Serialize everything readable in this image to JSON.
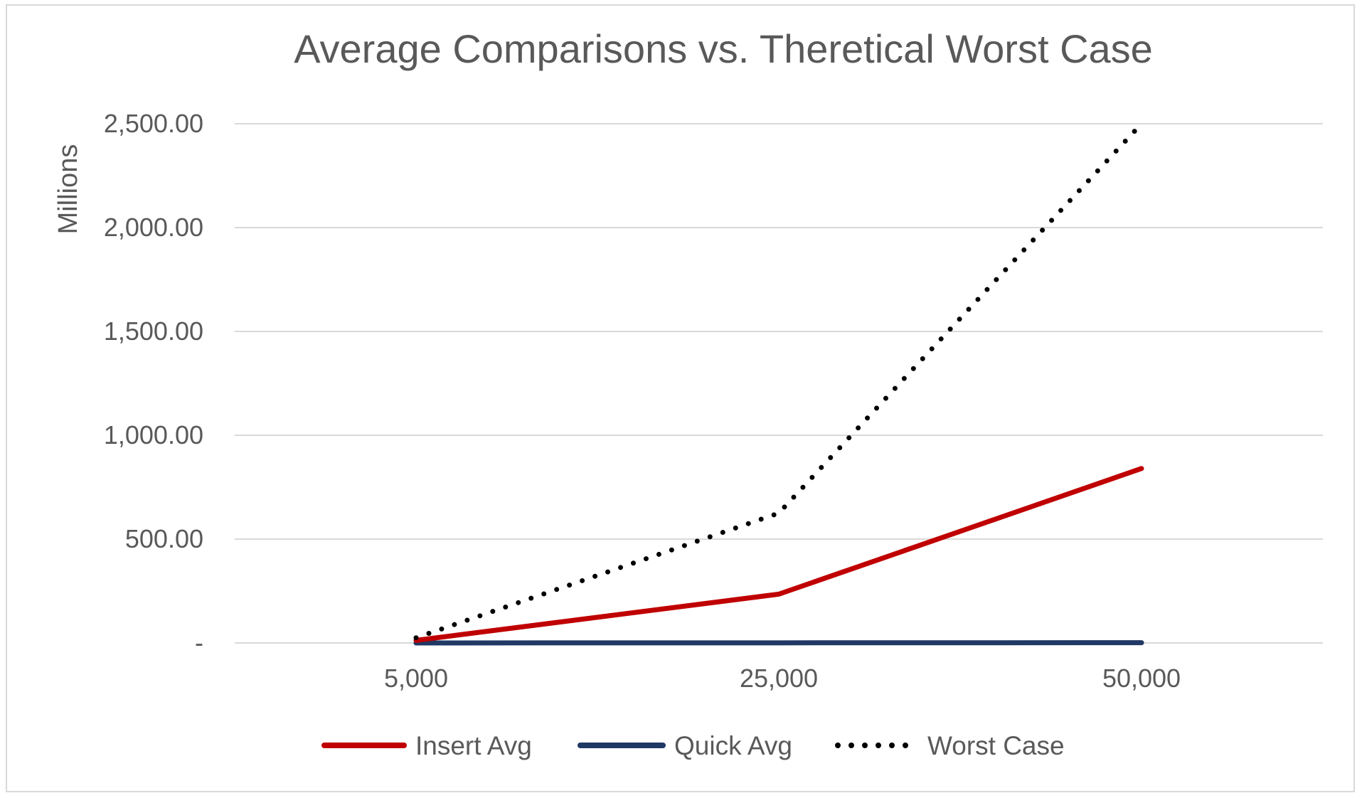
{
  "chart_data": {
    "type": "line",
    "title": "Average Comparisons vs. Theretical Worst Case",
    "ylabel": "Millions",
    "xlabel": "",
    "categories": [
      "5,000",
      "25,000",
      "50,000"
    ],
    "ylim": [
      0,
      2500
    ],
    "yticks": [
      0,
      500,
      1000,
      1500,
      2000,
      2500
    ],
    "ytick_labels": [
      "-",
      "500.00",
      "1,000.00",
      "1,500.00",
      "2,000.00",
      "2,500.00"
    ],
    "grid": true,
    "legend_position": "bottom",
    "series": [
      {
        "name": "Insert Avg",
        "values": [
          12.5,
          235,
          840
        ],
        "color": "#c00000",
        "style": "solid"
      },
      {
        "name": "Quick Avg",
        "values": [
          0.1,
          0.6,
          1.3
        ],
        "color": "#203864",
        "style": "solid"
      },
      {
        "name": "Worst Case",
        "values": [
          25,
          625,
          2500
        ],
        "color": "#000000",
        "style": "dotted"
      }
    ]
  }
}
